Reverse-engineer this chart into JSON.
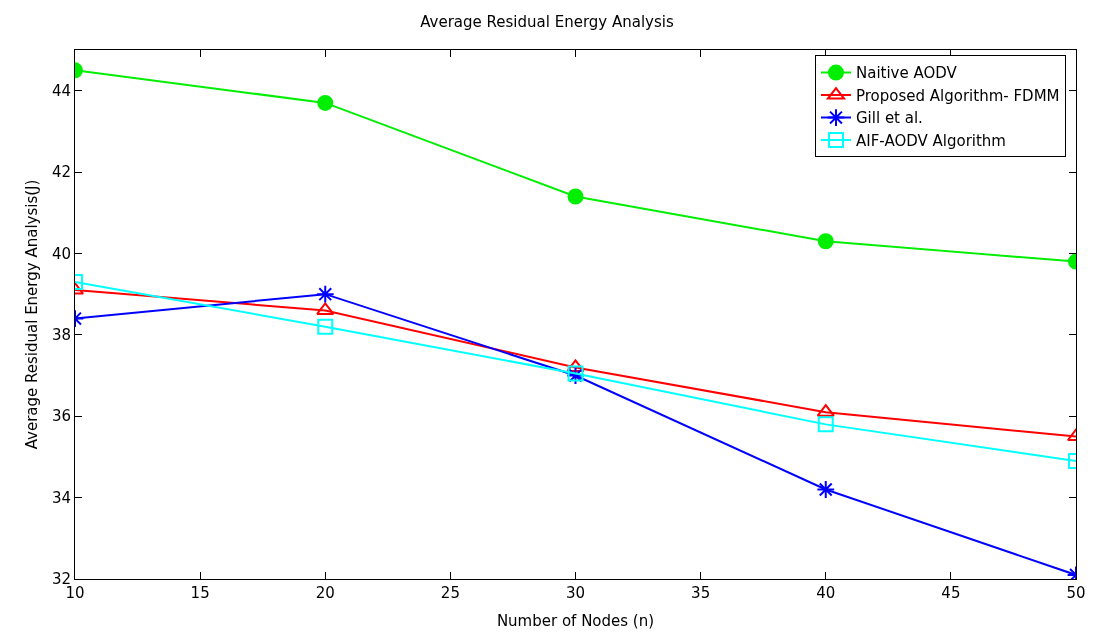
{
  "chart_data": {
    "type": "line",
    "title": "Average Residual Energy Analysis",
    "xlabel": "Number of Nodes (n)",
    "ylabel": "Average Residual Energy Analysis(J)",
    "x": [
      10,
      20,
      30,
      40,
      50
    ],
    "series": [
      {
        "name": "Naitive AODV",
        "color": "#00ee00",
        "marker": "circle",
        "values": [
          44.5,
          43.7,
          41.4,
          40.3,
          39.8
        ]
      },
      {
        "name": "Proposed Algorithm- FDMM",
        "color": "#ff0000",
        "marker": "triangle",
        "values": [
          39.1,
          38.6,
          37.2,
          36.1,
          35.5
        ]
      },
      {
        "name": "Gill et al.",
        "color": "#0000ff",
        "marker": "cross",
        "values": [
          38.4,
          39.0,
          37.0,
          34.2,
          32.1
        ]
      },
      {
        "name": "AIF-AODV Algorithm",
        "color": "#00ffff",
        "marker": "square",
        "values": [
          39.3,
          38.2,
          37.05,
          35.8,
          34.9
        ]
      }
    ],
    "xlim": [
      10,
      50
    ],
    "xticks": [
      10,
      15,
      20,
      25,
      30,
      35,
      40,
      45,
      50
    ],
    "ylim": [
      32,
      45
    ],
    "yticks": [
      32,
      34,
      36,
      38,
      40,
      42,
      44
    ],
    "grid": false,
    "legend": "top right",
    "line_style": "solid"
  }
}
